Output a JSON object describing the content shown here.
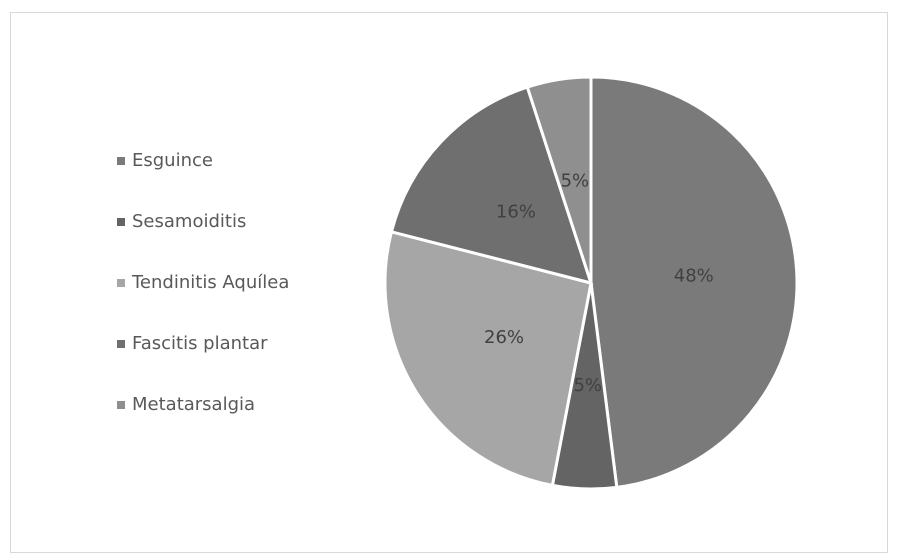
{
  "chart_data": {
    "type": "pie",
    "categories": [
      "Esguince",
      "Sesamoiditis",
      "Tendinitis Aquílea",
      "Fascitis plantar",
      "Metatarsalgia"
    ],
    "values": [
      48,
      5,
      26,
      16,
      5
    ],
    "value_labels": [
      "48%",
      "5%",
      "26%",
      "16%",
      "5%"
    ],
    "colors": [
      "#7a7a7a",
      "#646464",
      "#a6a6a6",
      "#6f6f6f",
      "#8f8f8f"
    ],
    "legend": "left"
  }
}
